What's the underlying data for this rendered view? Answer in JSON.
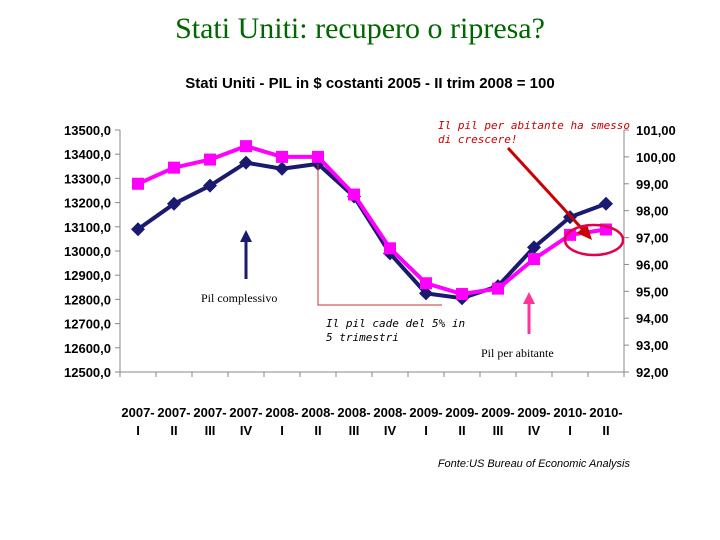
{
  "slide_title": "Stati Uniti: recupero o ripresa?",
  "chart_data": {
    "type": "line",
    "title": "Stati Uniti - PIL in $ costanti 2005 - II trim 2008 = 100",
    "categories": [
      [
        "2007-",
        "I"
      ],
      [
        "2007-",
        "II"
      ],
      [
        "2007-",
        "III"
      ],
      [
        "2007-",
        "IV"
      ],
      [
        "2008-",
        "I"
      ],
      [
        "2008-",
        "II"
      ],
      [
        "2008-",
        "III"
      ],
      [
        "2008-",
        "IV"
      ],
      [
        "2009-",
        "I"
      ],
      [
        "2009-",
        "II"
      ],
      [
        "2009-",
        "III"
      ],
      [
        "2009-",
        "IV"
      ],
      [
        "2010-",
        "I"
      ],
      [
        "2010-",
        "II"
      ]
    ],
    "y_left": {
      "ylim": [
        12500,
        13500
      ],
      "ticks": [
        "13500,0",
        "13400,0",
        "13300,0",
        "13200,0",
        "13100,0",
        "13000,0",
        "12900,0",
        "12800,0",
        "12700,0",
        "12600,0",
        "12500,0"
      ]
    },
    "y_right": {
      "ylim": [
        92,
        101
      ],
      "ticks": [
        "101,00",
        "100,00",
        "99,00",
        "98,00",
        "97,00",
        "96,00",
        "95,00",
        "94,00",
        "93,00",
        "92,00"
      ]
    },
    "series": [
      {
        "axis": "left",
        "color": "#1a1a6e",
        "marker": "diamond",
        "values": [
          13090,
          13195,
          13270,
          13365,
          13340,
          13360,
          13225,
          12990,
          12825,
          12805,
          12855,
          13015,
          13140,
          13195
        ]
      },
      {
        "axis": "right",
        "color": "#ff00ff",
        "marker": "square",
        "values": [
          99.0,
          99.6,
          99.9,
          100.4,
          100.0,
          100.0,
          98.6,
          96.6,
          95.3,
          94.9,
          95.1,
          96.2,
          97.1,
          97.3
        ]
      }
    ],
    "grid": false,
    "source": "Fonte:US Bureau of Economic Analysis"
  },
  "annotations": {
    "pil_per_abitante_note": [
      "Il pil per abitante ha smesso",
      "di crescere!"
    ],
    "pil_complessivo": "Pil complessivo",
    "pil_cade_note": [
      "Il pil cade del 5% in",
      "5 trimestri"
    ],
    "pil_per_abitante": "Pil per abitante"
  },
  "colors": {
    "title": "#006600",
    "annotation_arrow": "#cc0000",
    "highlight_circle": "#e4004a",
    "marker_arrow": "#1a1a6e",
    "pink_arrow": "#ff3399",
    "bracket": "#cc3333"
  }
}
